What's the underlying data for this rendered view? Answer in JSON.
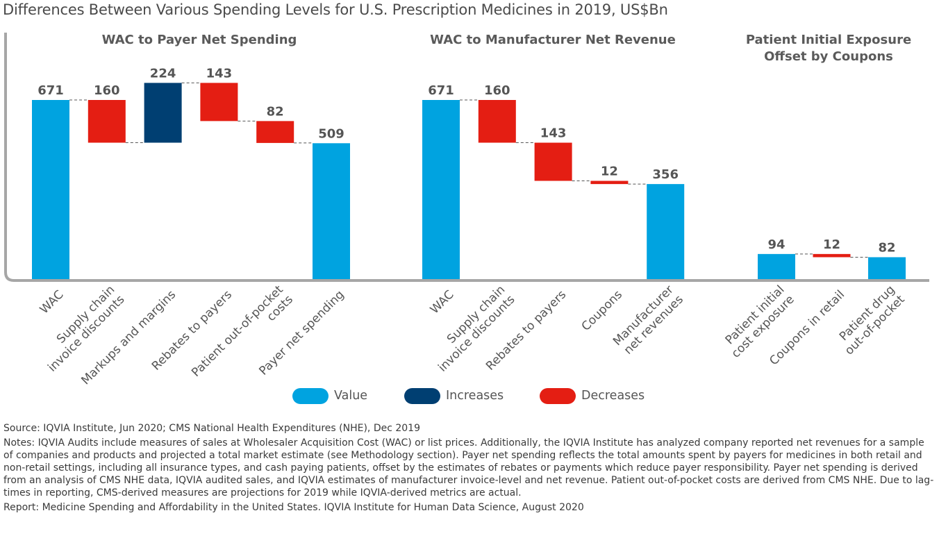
{
  "title": "Differences Between Various Spending Levels for U.S. Prescription Medicines in 2019, US$Bn",
  "colors": {
    "value": "#00a3e0",
    "increase": "#003f72",
    "decrease": "#e41e13",
    "axis": "#a6a6a6"
  },
  "chart_data": [
    {
      "type": "waterfall",
      "title": "WAC to Payer Net Spending",
      "unit": "US$Bn",
      "steps": [
        {
          "label": "WAC",
          "value": 671,
          "kind": "value"
        },
        {
          "label": "Supply chain invoice discounts",
          "value": 160,
          "kind": "decrease"
        },
        {
          "label": "Markups and margins",
          "value": 224,
          "kind": "increase"
        },
        {
          "label": "Rebates to payers",
          "value": 143,
          "kind": "decrease"
        },
        {
          "label": "Patient out-of-pocket costs",
          "value": 82,
          "kind": "decrease"
        },
        {
          "label": "Payer net spending",
          "value": 509,
          "kind": "value"
        }
      ]
    },
    {
      "type": "waterfall",
      "title": "WAC to Manufacturer Net Revenue",
      "unit": "US$Bn",
      "steps": [
        {
          "label": "WAC",
          "value": 671,
          "kind": "value"
        },
        {
          "label": "Supply chain invoice discounts",
          "value": 160,
          "kind": "decrease"
        },
        {
          "label": "Rebates to payers",
          "value": 143,
          "kind": "decrease"
        },
        {
          "label": "Coupons",
          "value": 12,
          "kind": "decrease"
        },
        {
          "label": "Manufacturer net revenues",
          "value": 356,
          "kind": "value"
        }
      ]
    },
    {
      "type": "waterfall",
      "title": "Patient Initial Exposure Offset by Coupons",
      "unit": "US$Bn",
      "steps": [
        {
          "label": "Patient initial cost exposure",
          "value": 94,
          "kind": "value"
        },
        {
          "label": "Coupons in retail",
          "value": 12,
          "kind": "decrease"
        },
        {
          "label": "Patient drug out-of-pocket",
          "value": 82,
          "kind": "value"
        }
      ]
    }
  ],
  "legend": [
    {
      "label": "Value",
      "kind": "value"
    },
    {
      "label": "Increases",
      "kind": "increase"
    },
    {
      "label": "Decreases",
      "kind": "decrease"
    }
  ],
  "notes": {
    "source": "Source: IQVIA Institute, Jun 2020; CMS National Health Expenditures (NHE), Dec 2019",
    "notes": "Notes: IQVIA Audits include measures of sales at Wholesaler Acquisition Cost (WAC) or list prices. Additionally, the IQVIA Institute has analyzed company reported net revenues for a sample of companies and products and projected a total market estimate (see Methodology section). Payer net spending reflects the total amounts spent by payers for medicines in both retail and non-retail settings, including all insurance types, and cash paying patients, offset by the estimates of rebates or payments which reduce payer responsibility. Payer net spending is derived from an analysis of CMS NHE data, IQVIA audited sales, and IQVIA estimates of manufacturer invoice-level and net revenue. Patient out-of-pocket costs are derived from CMS NHE. Due to lag-times in reporting, CMS-derived measures are projections for 2019 while IQVIA-derived metrics are actual.",
    "report": "Report: Medicine Spending and Affordability in the United States. IQVIA Institute for Human Data Science, August 2020"
  }
}
